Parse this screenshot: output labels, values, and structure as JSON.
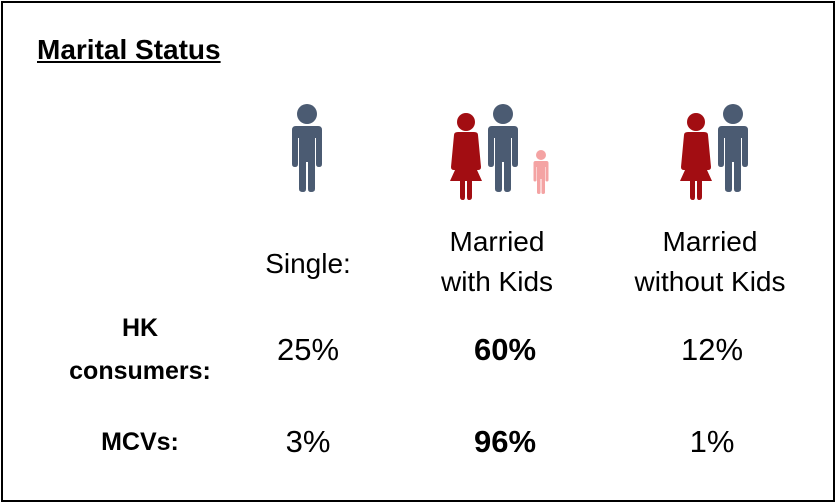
{
  "title": "Marital Status",
  "table": {
    "columns": [
      "Single:",
      "Married\nwith Kids",
      "Married\nwithout Kids"
    ],
    "rows": [
      {
        "label": "HK\nconsumers:",
        "values": [
          "25%",
          "60%",
          "12%"
        ]
      },
      {
        "label": "MCVs:",
        "values": [
          "3%",
          "96%",
          "1%"
        ]
      }
    ]
  }
}
